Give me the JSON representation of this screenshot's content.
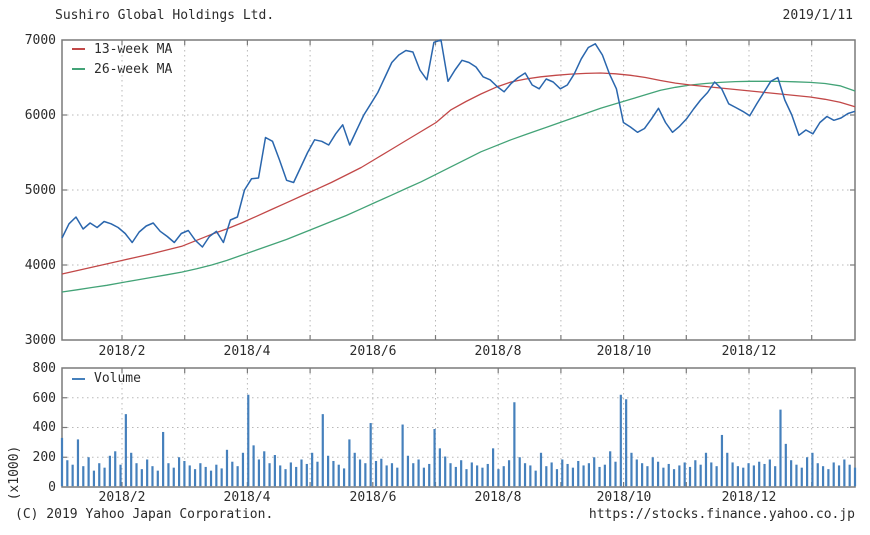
{
  "header": {
    "title": "Sushiro Global Holdings Ltd.",
    "date": "2019/1/11"
  },
  "footer": {
    "copyright": "(C) 2019 Yahoo Japan Corporation.",
    "url": "https://stocks.finance.yahoo.co.jp"
  },
  "colors": {
    "price_line": "#2a66ad",
    "ma13_line": "#c24848",
    "ma26_line": "#43a377",
    "volume_bar": "#4580bc",
    "grid": "#b8b8b8",
    "border": "#7a7a7a",
    "text": "#2b2b2b",
    "background": "#ffffff"
  },
  "chart_data": {
    "type": "line",
    "title": "Sushiro Global Holdings Ltd.",
    "as_of_date": "2019/1/11",
    "xlabel": "",
    "x_range": [
      "2018/1",
      "2019/1/11"
    ],
    "x_tick_labels": [
      "2018/2",
      "2018/4",
      "2018/6",
      "2018/8",
      "2018/10",
      "2018/12"
    ],
    "grid": true,
    "price_panel": {
      "ylim": [
        3000,
        7000
      ],
      "y_ticks": [
        "7000",
        "6000",
        "5000",
        "4000",
        "3000"
      ],
      "legend_position": "top-left",
      "series": [
        {
          "name": "Price",
          "color": "#2a66ad",
          "values": [
            4360,
            4550,
            4640,
            4480,
            4560,
            4500,
            4580,
            4550,
            4500,
            4420,
            4300,
            4440,
            4520,
            4560,
            4450,
            4380,
            4300,
            4420,
            4460,
            4330,
            4240,
            4380,
            4450,
            4300,
            4600,
            4640,
            5000,
            5150,
            5160,
            5700,
            5650,
            5400,
            5130,
            5100,
            5300,
            5500,
            5670,
            5650,
            5600,
            5750,
            5870,
            5600,
            5800,
            6000,
            6150,
            6300,
            6500,
            6700,
            6800,
            6860,
            6840,
            6600,
            6470,
            6970,
            7000,
            6450,
            6600,
            6730,
            6700,
            6640,
            6510,
            6470,
            6380,
            6310,
            6420,
            6500,
            6560,
            6400,
            6350,
            6480,
            6440,
            6350,
            6400,
            6550,
            6750,
            6900,
            6950,
            6800,
            6550,
            6350,
            5900,
            5840,
            5770,
            5820,
            5950,
            6090,
            5900,
            5770,
            5850,
            5950,
            6080,
            6200,
            6300,
            6440,
            6350,
            6150,
            6100,
            6050,
            5990,
            6150,
            6300,
            6450,
            6500,
            6200,
            6000,
            5730,
            5800,
            5750,
            5900,
            5980,
            5930,
            5960,
            6020,
            6050
          ]
        },
        {
          "name": "13-week MA",
          "color": "#c24848",
          "values": [
            3880,
            3925,
            3970,
            4015,
            4060,
            4105,
            4150,
            4200,
            4250,
            4330,
            4410,
            4480,
            4560,
            4650,
            4740,
            4830,
            4920,
            5010,
            5100,
            5200,
            5300,
            5420,
            5540,
            5660,
            5780,
            5900,
            6070,
            6180,
            6280,
            6370,
            6440,
            6480,
            6510,
            6530,
            6545,
            6555,
            6560,
            6550,
            6530,
            6500,
            6460,
            6425,
            6400,
            6380,
            6360,
            6340,
            6320,
            6300,
            6280,
            6260,
            6240,
            6210,
            6170,
            6110
          ]
        },
        {
          "name": "26-week MA",
          "color": "#43a377",
          "values": [
            3640,
            3670,
            3700,
            3730,
            3765,
            3800,
            3835,
            3870,
            3905,
            3950,
            4000,
            4060,
            4130,
            4200,
            4270,
            4340,
            4420,
            4500,
            4580,
            4660,
            4750,
            4840,
            4930,
            5020,
            5110,
            5210,
            5310,
            5410,
            5510,
            5590,
            5670,
            5740,
            5810,
            5880,
            5950,
            6020,
            6090,
            6150,
            6210,
            6270,
            6330,
            6370,
            6400,
            6420,
            6435,
            6445,
            6450,
            6450,
            6448,
            6443,
            6435,
            6420,
            6390,
            6320
          ]
        }
      ]
    },
    "volume_panel": {
      "legend": "Volume",
      "ylabel": "(x1000)",
      "ylim": [
        0,
        800
      ],
      "y_ticks": [
        "800",
        "600",
        "400",
        "200",
        "0"
      ],
      "color": "#4580bc",
      "values": [
        330,
        180,
        150,
        320,
        140,
        200,
        110,
        160,
        130,
        210,
        240,
        150,
        490,
        230,
        160,
        120,
        185,
        140,
        110,
        370,
        160,
        130,
        200,
        175,
        145,
        120,
        160,
        135,
        110,
        150,
        125,
        250,
        170,
        140,
        230,
        620,
        280,
        185,
        240,
        160,
        215,
        145,
        120,
        165,
        135,
        185,
        155,
        230,
        170,
        490,
        210,
        175,
        150,
        125,
        320,
        230,
        185,
        160,
        430,
        175,
        190,
        145,
        160,
        130,
        420,
        210,
        160,
        185,
        130,
        155,
        390,
        260,
        205,
        160,
        135,
        180,
        120,
        165,
        145,
        130,
        155,
        260,
        120,
        140,
        180,
        570,
        200,
        160,
        145,
        110,
        230,
        140,
        165,
        120,
        185,
        155,
        130,
        175,
        145,
        160,
        200,
        135,
        150,
        240,
        170,
        620,
        590,
        230,
        185,
        160,
        140,
        200,
        170,
        130,
        155,
        120,
        145,
        165,
        135,
        180,
        150,
        230,
        165,
        140,
        350,
        230,
        165,
        140,
        130,
        160,
        145,
        170,
        155,
        185,
        140,
        520,
        290,
        180,
        150,
        130,
        200,
        230,
        160,
        140,
        120,
        165,
        145,
        185,
        150,
        130
      ]
    }
  }
}
